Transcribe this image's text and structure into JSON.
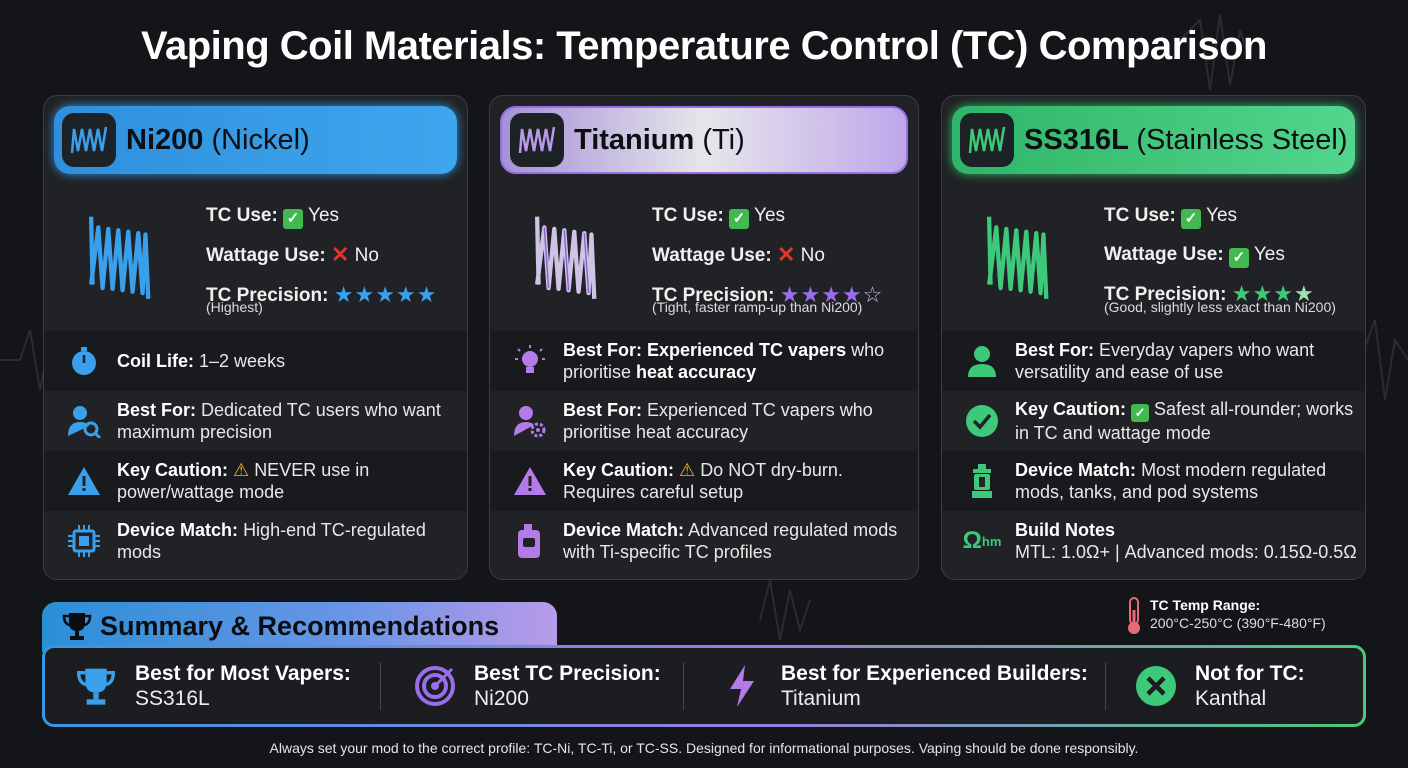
{
  "title": "Vaping Coil Materials: Temperature Control (TC) Comparison",
  "colors": {
    "ni200": "#3aa0ec",
    "titanium": "#b9a8e6",
    "ss316l": "#3ec97a",
    "star_blue": "#3aa0ec",
    "star_purple": "#9a6ee8",
    "star_green": "#3ec97a"
  },
  "cards": [
    {
      "name": "Ni200",
      "name_paren": "(Nickel)",
      "tc_use_label": "TC Use:",
      "tc_use_value": "Yes",
      "wattage_label": "Wattage Use:",
      "wattage_value": "No",
      "precision_label": "TC Precision:",
      "precision_stars": 5,
      "precision_note": "(Highest)",
      "rows": [
        {
          "icon": "stopwatch-icon",
          "label": "Coil Life:",
          "text": "1–2 weeks"
        },
        {
          "icon": "user-search-icon",
          "label": "Best For:",
          "text": "Dedicated TC users who want maximum precision"
        },
        {
          "icon": "warning-icon",
          "label": "Key Caution:",
          "text": "NEVER use in power/wattage mode"
        },
        {
          "icon": "chip-icon",
          "label": "Device Match:",
          "text": "High-end TC-regulated mods"
        }
      ]
    },
    {
      "name": "Titanium",
      "name_paren": "(Ti)",
      "tc_use_label": "TC Use:",
      "tc_use_value": "Yes",
      "wattage_label": "Wattage Use:",
      "wattage_value": "No",
      "precision_label": "TC Precision:",
      "precision_stars": 4.5,
      "precision_note": "(Tight, faster ramp-up than Ni200)",
      "rows": [
        {
          "icon": "lightbulb-icon",
          "label": "Best For: Experienced TC vapers",
          "text": "who prioritise",
          "bold_tail": "heat accuracy"
        },
        {
          "icon": "user-gear-icon",
          "label": "Best For:",
          "text": "Experienced TC vapers who prioritise heat accuracy"
        },
        {
          "icon": "warning-icon",
          "label": "Key Caution:",
          "text": "Do NOT dry-burn. Requires careful setup"
        },
        {
          "icon": "mod-device-icon",
          "label": "Device Match:",
          "text": "Advanced regulated mods with Ti-specific TC profiles"
        }
      ]
    },
    {
      "name": "SS316L",
      "name_paren": "(Stainless Steel)",
      "tc_use_label": "TC Use:",
      "tc_use_value": "Yes",
      "wattage_label": "Wattage Use:",
      "wattage_value": "Yes",
      "precision_label": "TC Precision:",
      "precision_stars": 3.5,
      "precision_note": "(Good, slightly less exact than Ni200)",
      "rows": [
        {
          "icon": "user-icon",
          "label": "Best For:",
          "text": "Everyday vapers who want versatility and ease of use"
        },
        {
          "icon": "check-circle-icon",
          "label": "Key Caution:",
          "text": "Safest all-rounder; works in TC and wattage mode"
        },
        {
          "icon": "tank-icon",
          "label": "Device Match:",
          "text": "Most modern regulated mods, tanks, and pod systems"
        },
        {
          "icon": "ohm-icon",
          "icon_text": "Ωhm",
          "label": "Build Notes",
          "text": "MTL: 1.0Ω+ | Advanced mods: 0.15Ω-0.5Ω"
        }
      ]
    }
  ],
  "summary": {
    "title": "Summary & Recommendations",
    "items": [
      {
        "icon": "trophy-icon",
        "label": "Best for Most Vapers:",
        "value": "SS316L"
      },
      {
        "icon": "target-icon",
        "label": "Best TC Precision:",
        "value": "Ni200"
      },
      {
        "icon": "lightning-icon",
        "label": "Best for Experienced Builders:",
        "value": "Titanium"
      },
      {
        "icon": "x-circle-icon",
        "label": "Not for TC:",
        "value": "Kanthal"
      }
    ]
  },
  "temp_range": {
    "label": "TC Temp Range:",
    "value": "200°C-250°C (390°F-480°F)"
  },
  "footer": "Always set your mod to the correct profile: TC-Ni, TC-Ti, or TC-SS. Designed for informational purposes. Vaping should be done responsibly."
}
